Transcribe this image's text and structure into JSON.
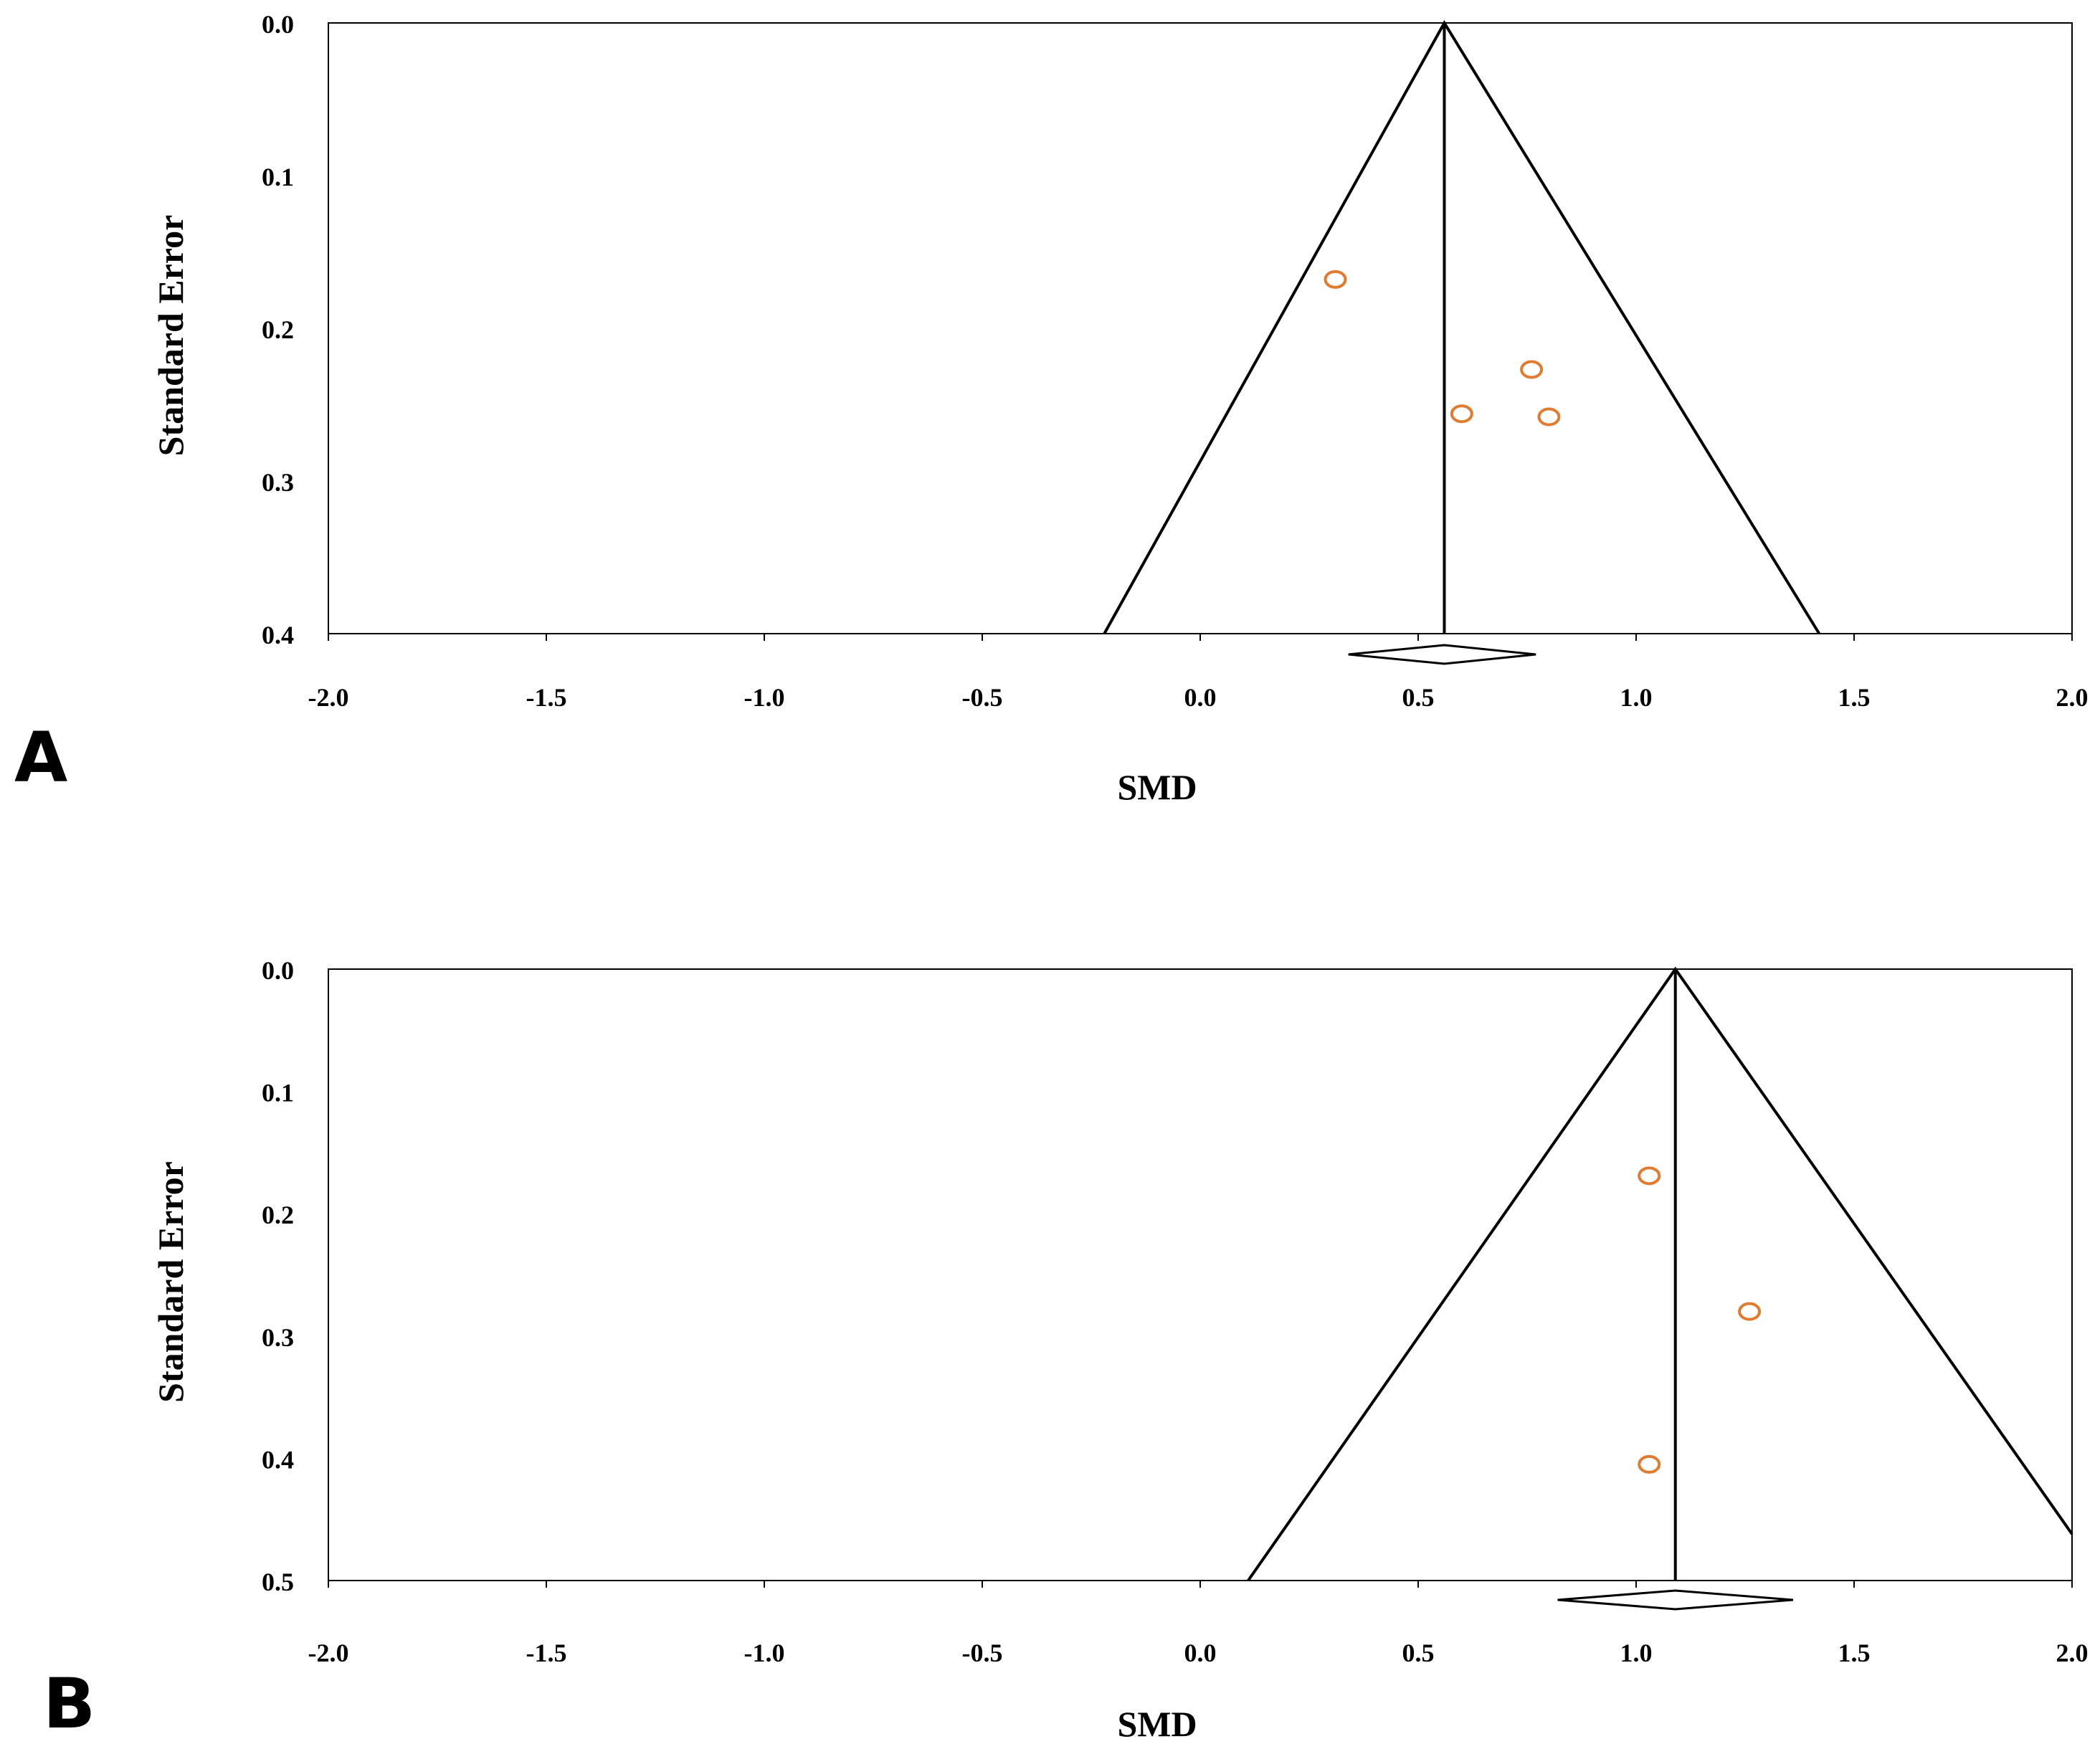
{
  "chart_data": [
    {
      "type": "scatter",
      "subtype": "funnel-plot",
      "panel_label": "A",
      "xlabel": "SMD",
      "ylabel": "Standard Error",
      "xlim": [
        -2.0,
        2.0
      ],
      "ylim": [
        0.0,
        0.4
      ],
      "y_reversed": true,
      "x_ticks": [
        "-2.0",
        "-1.5",
        "-1.0",
        "-0.5",
        "0.0",
        "0.5",
        "1.0",
        "1.5",
        "2.0"
      ],
      "x_tick_values": [
        -2.0,
        -1.5,
        -1.0,
        -0.5,
        0.0,
        0.5,
        1.0,
        1.5,
        2.0
      ],
      "y_ticks": [
        "0.0",
        "0.1",
        "0.2",
        "0.3",
        "0.4"
      ],
      "y_tick_values": [
        0.0,
        0.1,
        0.2,
        0.3,
        0.4
      ],
      "pooled_smd": 0.56,
      "funnel": {
        "apex": [
          0.56,
          0.0
        ],
        "left_base": [
          -0.22,
          0.4
        ],
        "right_base": [
          1.42,
          0.4
        ]
      },
      "pooled_diamond": {
        "lower": 0.34,
        "estimate": 0.56,
        "upper": 0.77
      },
      "points": [
        {
          "smd": 0.31,
          "se": 0.168
        },
        {
          "smd": 0.76,
          "se": 0.227
        },
        {
          "smd": 0.6,
          "se": 0.256
        },
        {
          "smd": 0.8,
          "se": 0.258
        }
      ],
      "marker_color": "#e07b2f"
    },
    {
      "type": "scatter",
      "subtype": "funnel-plot",
      "panel_label": "B",
      "xlabel": "SMD",
      "ylabel": "Standard Error",
      "xlim": [
        -2.0,
        2.0
      ],
      "ylim": [
        0.0,
        0.5
      ],
      "y_reversed": true,
      "x_ticks": [
        "-2.0",
        "-1.5",
        "-1.0",
        "-0.5",
        "0.0",
        "0.5",
        "1.0",
        "1.5",
        "2.0"
      ],
      "x_tick_values": [
        -2.0,
        -1.5,
        -1.0,
        -0.5,
        0.0,
        0.5,
        1.0,
        1.5,
        2.0
      ],
      "y_ticks": [
        "0.0",
        "0.1",
        "0.2",
        "0.3",
        "0.4",
        "0.5"
      ],
      "y_tick_values": [
        0.0,
        0.1,
        0.2,
        0.3,
        0.4,
        0.5
      ],
      "pooled_smd": 1.09,
      "funnel": {
        "apex": [
          1.09,
          0.0
        ],
        "left_base": [
          0.11,
          0.5
        ],
        "right_edge": [
          2.0,
          0.462
        ]
      },
      "pooled_diamond": {
        "lower": 0.82,
        "estimate": 1.09,
        "upper": 1.36
      },
      "points": [
        {
          "smd": 1.03,
          "se": 0.169
        },
        {
          "smd": 1.26,
          "se": 0.28
        },
        {
          "smd": 1.03,
          "se": 0.405
        }
      ],
      "marker_color": "#e07b2f"
    }
  ]
}
